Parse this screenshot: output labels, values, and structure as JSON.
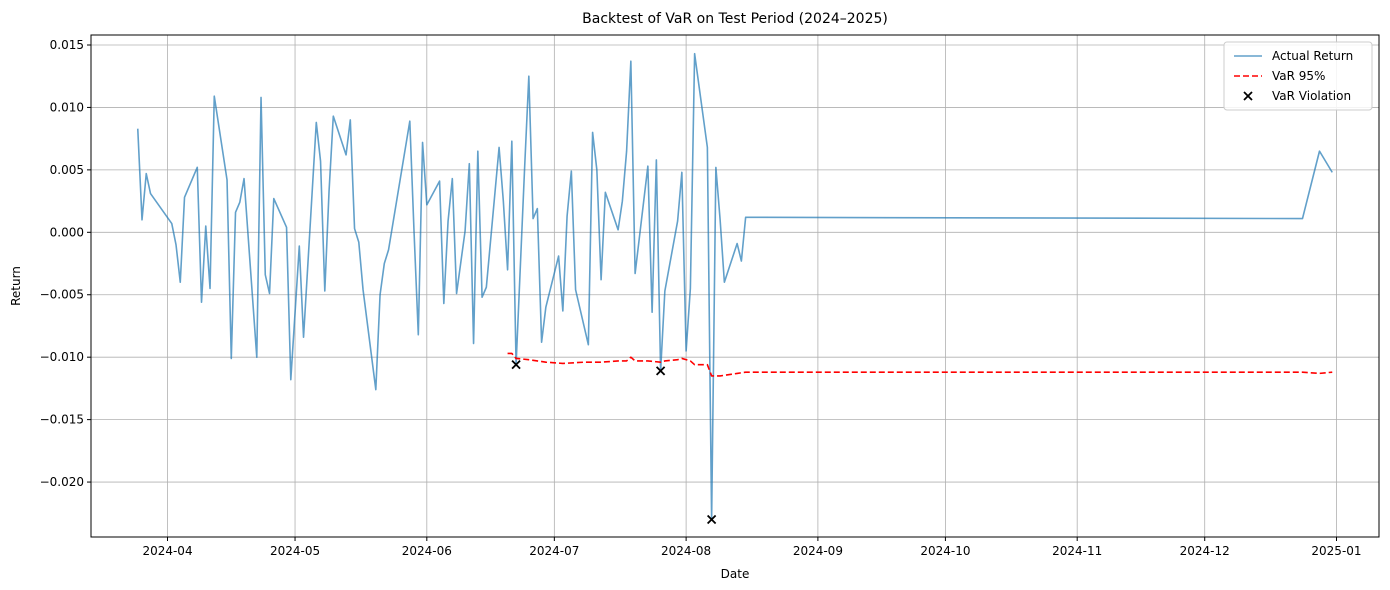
{
  "chart_data": {
    "type": "line",
    "title": "Backtest of VaR on Test Period (2024–2025)",
    "xlabel": "Date",
    "ylabel": "Return",
    "xlim": [
      "2024-03-14",
      "2025-01-11"
    ],
    "ylim": [
      -0.0244,
      0.0158
    ],
    "grid": true,
    "legend_position": "top-right",
    "x_ticks": [
      "2024-04-01",
      "2024-05-01",
      "2024-06-01",
      "2024-07-01",
      "2024-08-01",
      "2024-09-01",
      "2024-10-01",
      "2024-11-01",
      "2024-12-01",
      "2025-01-01"
    ],
    "x_tick_labels": [
      "2024-04",
      "2024-05",
      "2024-06",
      "2024-07",
      "2024-08",
      "2024-09",
      "2024-10",
      "2024-11",
      "2024-12",
      "2025-01"
    ],
    "y_ticks": [
      0.015,
      0.01,
      0.005,
      0.0,
      -0.005,
      -0.01,
      -0.015,
      -0.02
    ],
    "y_tick_labels": [
      "0.015",
      "0.010",
      "0.005",
      "0.000",
      "−0.005",
      "−0.010",
      "−0.015",
      "−0.020"
    ],
    "series": [
      {
        "name": "Actual Return",
        "style": "solid",
        "color": "#1f77b4",
        "opacity": 0.7,
        "points": [
          [
            "2024-03-25",
            0.0083
          ],
          [
            "2024-03-26",
            0.001
          ],
          [
            "2024-03-27",
            0.0047
          ],
          [
            "2024-03-28",
            0.0031
          ],
          [
            "2024-04-02",
            0.0007
          ],
          [
            "2024-04-03",
            -0.001
          ],
          [
            "2024-04-04",
            -0.004
          ],
          [
            "2024-04-05",
            0.0028
          ],
          [
            "2024-04-08",
            0.0052
          ],
          [
            "2024-04-09",
            -0.0056
          ],
          [
            "2024-04-10",
            0.0005
          ],
          [
            "2024-04-11",
            -0.0045
          ],
          [
            "2024-04-12",
            0.0109
          ],
          [
            "2024-04-15",
            0.0042
          ],
          [
            "2024-04-16",
            -0.0101
          ],
          [
            "2024-04-17",
            0.0016
          ],
          [
            "2024-04-18",
            0.0024
          ],
          [
            "2024-04-19",
            0.0043
          ],
          [
            "2024-04-22",
            -0.01
          ],
          [
            "2024-04-23",
            0.0108
          ],
          [
            "2024-04-24",
            -0.0034
          ],
          [
            "2024-04-25",
            -0.0049
          ],
          [
            "2024-04-26",
            0.0027
          ],
          [
            "2024-04-29",
            0.0004
          ],
          [
            "2024-04-30",
            -0.0118
          ],
          [
            "2024-05-02",
            -0.0011
          ],
          [
            "2024-05-03",
            -0.0084
          ],
          [
            "2024-05-06",
            0.0088
          ],
          [
            "2024-05-07",
            0.0057
          ],
          [
            "2024-05-08",
            -0.0047
          ],
          [
            "2024-05-09",
            0.0033
          ],
          [
            "2024-05-10",
            0.0093
          ],
          [
            "2024-05-13",
            0.0062
          ],
          [
            "2024-05-14",
            0.009
          ],
          [
            "2024-05-15",
            0.0003
          ],
          [
            "2024-05-16",
            -0.0008
          ],
          [
            "2024-05-17",
            -0.0046
          ],
          [
            "2024-05-20",
            -0.0126
          ],
          [
            "2024-05-21",
            -0.005
          ],
          [
            "2024-05-22",
            -0.0025
          ],
          [
            "2024-05-23",
            -0.0014
          ],
          [
            "2024-05-28",
            0.0089
          ],
          [
            "2024-05-29",
            0.0
          ],
          [
            "2024-05-30",
            -0.0082
          ],
          [
            "2024-05-31",
            0.0072
          ],
          [
            "2024-06-01",
            0.0022
          ],
          [
            "2024-06-04",
            0.0041
          ],
          [
            "2024-06-05",
            -0.0057
          ],
          [
            "2024-06-06",
            0.0009
          ],
          [
            "2024-06-07",
            0.0043
          ],
          [
            "2024-06-08",
            -0.0049
          ],
          [
            "2024-06-10",
            0.0001
          ],
          [
            "2024-06-11",
            0.0055
          ],
          [
            "2024-06-12",
            -0.0089
          ],
          [
            "2024-06-13",
            0.0065
          ],
          [
            "2024-06-14",
            -0.0052
          ],
          [
            "2024-06-15",
            -0.0044
          ],
          [
            "2024-06-18",
            0.0068
          ],
          [
            "2024-06-19",
            0.0025
          ],
          [
            "2024-06-20",
            -0.003
          ],
          [
            "2024-06-21",
            0.0073
          ],
          [
            "2024-06-22",
            -0.0106
          ],
          [
            "2024-06-24",
            0.0051
          ],
          [
            "2024-06-25",
            0.0125
          ],
          [
            "2024-06-26",
            0.0011
          ],
          [
            "2024-06-27",
            0.0019
          ],
          [
            "2024-06-28",
            -0.0088
          ],
          [
            "2024-06-29",
            -0.006
          ],
          [
            "2024-07-02",
            -0.0019
          ],
          [
            "2024-07-03",
            -0.0063
          ],
          [
            "2024-07-04",
            0.0013
          ],
          [
            "2024-07-05",
            0.0049
          ],
          [
            "2024-07-06",
            -0.0046
          ],
          [
            "2024-07-09",
            -0.009
          ],
          [
            "2024-07-10",
            0.008
          ],
          [
            "2024-07-11",
            0.005
          ],
          [
            "2024-07-12",
            -0.0038
          ],
          [
            "2024-07-13",
            0.0032
          ],
          [
            "2024-07-16",
            0.0002
          ],
          [
            "2024-07-17",
            0.0025
          ],
          [
            "2024-07-18",
            0.0065
          ],
          [
            "2024-07-19",
            0.0137
          ],
          [
            "2024-07-20",
            -0.0033
          ],
          [
            "2024-07-23",
            0.0053
          ],
          [
            "2024-07-24",
            -0.0064
          ],
          [
            "2024-07-25",
            0.0058
          ],
          [
            "2024-07-26",
            -0.0111
          ],
          [
            "2024-07-27",
            -0.0047
          ],
          [
            "2024-07-30",
            0.0009
          ],
          [
            "2024-07-31",
            0.0048
          ],
          [
            "2024-08-01",
            -0.0095
          ],
          [
            "2024-08-02",
            -0.0045
          ],
          [
            "2024-08-03",
            0.0143
          ],
          [
            "2024-08-06",
            0.0068
          ],
          [
            "2024-08-07",
            -0.023
          ],
          [
            "2024-08-08",
            0.0052
          ],
          [
            "2024-08-09",
            0.001
          ],
          [
            "2024-08-10",
            -0.004
          ],
          [
            "2024-08-13",
            -0.0009
          ],
          [
            "2024-08-14",
            -0.0023
          ],
          [
            "2024-08-15",
            0.0012
          ],
          [
            "2024-12-24",
            0.0011
          ],
          [
            "2024-12-28",
            0.0065
          ],
          [
            "2024-12-31",
            0.0048
          ]
        ]
      },
      {
        "name": "VaR 95%",
        "style": "dashed",
        "color": "#ff0000",
        "opacity": 1,
        "points": [
          [
            "2024-06-20",
            -0.0097
          ],
          [
            "2024-06-21",
            -0.0097
          ],
          [
            "2024-06-22",
            -0.0101
          ],
          [
            "2024-06-25",
            -0.0102
          ],
          [
            "2024-06-27",
            -0.0103
          ],
          [
            "2024-06-29",
            -0.0104
          ],
          [
            "2024-07-03",
            -0.0105
          ],
          [
            "2024-07-08",
            -0.0104
          ],
          [
            "2024-07-12",
            -0.0104
          ],
          [
            "2024-07-16",
            -0.0103
          ],
          [
            "2024-07-18",
            -0.0103
          ],
          [
            "2024-07-19",
            -0.01
          ],
          [
            "2024-07-20",
            -0.0103
          ],
          [
            "2024-07-23",
            -0.0103
          ],
          [
            "2024-07-26",
            -0.0104
          ],
          [
            "2024-07-27",
            -0.0103
          ],
          [
            "2024-07-30",
            -0.0102
          ],
          [
            "2024-07-31",
            -0.0101
          ],
          [
            "2024-08-02",
            -0.0103
          ],
          [
            "2024-08-03",
            -0.0106
          ],
          [
            "2024-08-06",
            -0.0106
          ],
          [
            "2024-08-07",
            -0.0115
          ],
          [
            "2024-08-09",
            -0.0115
          ],
          [
            "2024-08-13",
            -0.0113
          ],
          [
            "2024-08-15",
            -0.0112
          ],
          [
            "2024-12-24",
            -0.0112
          ],
          [
            "2024-12-28",
            -0.0113
          ],
          [
            "2024-12-31",
            -0.0112
          ]
        ]
      },
      {
        "name": "VaR Violation",
        "style": "marker-x",
        "color": "#000000",
        "opacity": 1,
        "points": [
          [
            "2024-06-22",
            -0.0106
          ],
          [
            "2024-07-26",
            -0.0111
          ],
          [
            "2024-08-07",
            -0.023
          ]
        ]
      }
    ]
  }
}
